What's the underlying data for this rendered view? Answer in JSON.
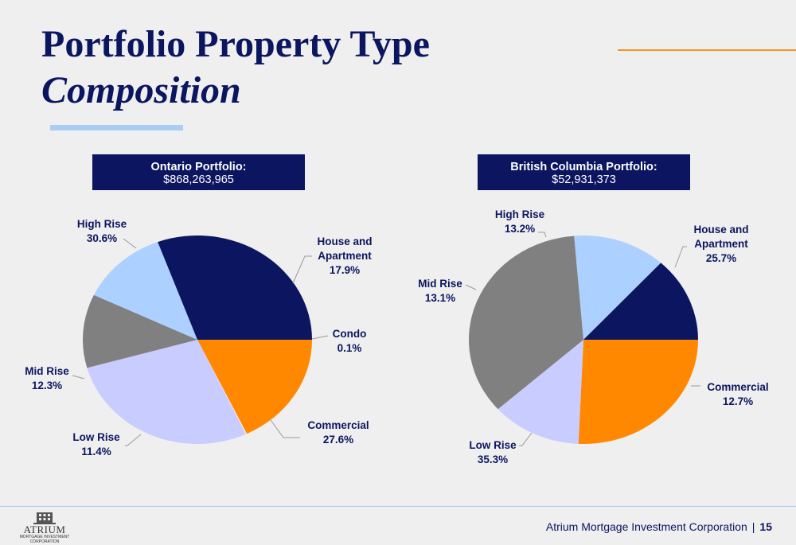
{
  "header": {
    "title_line1": "Portfolio Property Type",
    "title_line2": "Composition"
  },
  "colors": {
    "navy": "#0b1560",
    "orange": "#f7931e",
    "light_blue": "#a9cdf5",
    "lavender": "#c9ccff",
    "gray": "#808080"
  },
  "chart_data": [
    {
      "type": "pie",
      "title": "Ontario Portfolio:",
      "subtitle": "$868,263,965",
      "slices": [
        {
          "name": "House and Apartment",
          "value": 17.9,
          "label": "17.9%",
          "color": "#ff8800"
        },
        {
          "name": "Condo",
          "value": 0.1,
          "label": "0.1%",
          "color": "#ffffff"
        },
        {
          "name": "Commercial",
          "value": 27.6,
          "label": "27.6%",
          "color": "#c9ccff"
        },
        {
          "name": "Low Rise",
          "value": 11.4,
          "label": "11.4%",
          "color": "#808080"
        },
        {
          "name": "Mid Rise",
          "value": 12.3,
          "label": "12.3%",
          "color": "#acd0ff"
        },
        {
          "name": "High Rise",
          "value": 30.6,
          "label": "30.6%",
          "color": "#0b1560"
        }
      ]
    },
    {
      "type": "pie",
      "title": "British Columbia Portfolio:",
      "subtitle": "$52,931,373",
      "slices": [
        {
          "name": "House and Apartment",
          "value": 25.7,
          "label": "25.7%",
          "color": "#ff8800"
        },
        {
          "name": "Commercial",
          "value": 12.7,
          "label": "12.7%",
          "color": "#c9ccff"
        },
        {
          "name": "Low Rise",
          "value": 35.3,
          "label": "35.3%",
          "color": "#808080"
        },
        {
          "name": "Mid Rise",
          "value": 13.1,
          "label": "13.1%",
          "color": "#acd0ff"
        },
        {
          "name": "High Rise",
          "value": 13.2,
          "label": "13.2%",
          "color": "#0b1560"
        }
      ]
    }
  ],
  "footer": {
    "company": "Atrium Mortgage Investment Corporation",
    "separator": "|",
    "page_number": "15",
    "logo_text": "ATRIUM",
    "logo_subtext": "MORTGAGE INVESTMENT CORPORATION"
  }
}
